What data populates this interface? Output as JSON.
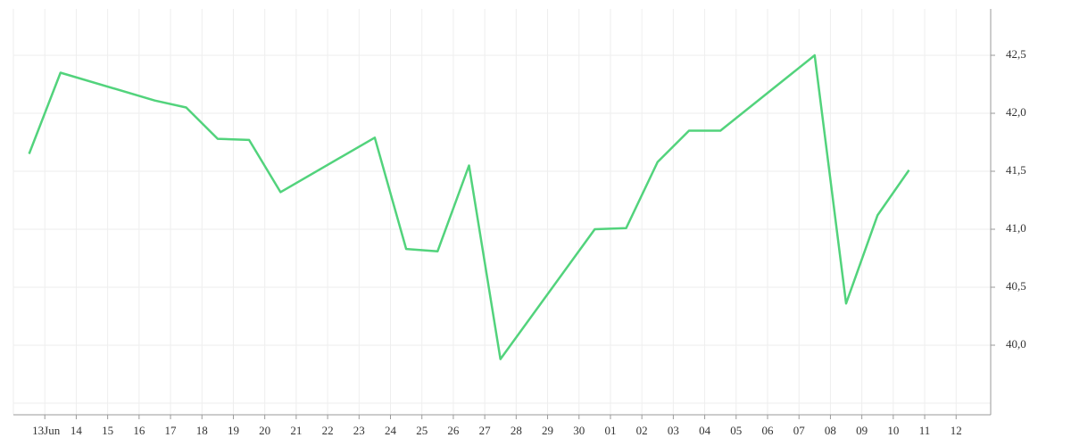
{
  "chart_data": {
    "type": "line",
    "x": [
      -0.5,
      0.5,
      3.5,
      4.5,
      5.5,
      6.5,
      7.5,
      10.5,
      11.5,
      12.5,
      13.5,
      14.5,
      17.5,
      18.5,
      19.5,
      20.5,
      21.5,
      24.5,
      25.5,
      26.5,
      27.5
    ],
    "values": [
      41.65,
      42.35,
      42.11,
      42.05,
      41.78,
      41.77,
      41.32,
      41.79,
      40.83,
      40.81,
      41.55,
      39.88,
      41.0,
      41.01,
      41.58,
      41.85,
      41.85,
      42.5,
      40.36,
      41.12,
      41.51
    ],
    "color": "#52d37c",
    "xlim": [
      -1,
      30.1
    ],
    "ylim": [
      39.4,
      42.9
    ],
    "xticks": [
      {
        "value": 0,
        "label": "13Jun"
      },
      {
        "value": 1,
        "label": "14"
      },
      {
        "value": 2,
        "label": "15"
      },
      {
        "value": 3,
        "label": "16"
      },
      {
        "value": 4,
        "label": "17"
      },
      {
        "value": 5,
        "label": "18"
      },
      {
        "value": 6,
        "label": "19"
      },
      {
        "value": 7,
        "label": "20"
      },
      {
        "value": 8,
        "label": "21"
      },
      {
        "value": 9,
        "label": "22"
      },
      {
        "value": 10,
        "label": "23"
      },
      {
        "value": 11,
        "label": "24"
      },
      {
        "value": 12,
        "label": "25"
      },
      {
        "value": 13,
        "label": "26"
      },
      {
        "value": 14,
        "label": "27"
      },
      {
        "value": 15,
        "label": "28"
      },
      {
        "value": 16,
        "label": "29"
      },
      {
        "value": 17,
        "label": "30"
      },
      {
        "value": 18,
        "label": "01"
      },
      {
        "value": 19,
        "label": "02"
      },
      {
        "value": 20,
        "label": "03"
      },
      {
        "value": 21,
        "label": "04"
      },
      {
        "value": 22,
        "label": "05"
      },
      {
        "value": 23,
        "label": "06"
      },
      {
        "value": 24,
        "label": "07"
      },
      {
        "value": 25,
        "label": "08"
      },
      {
        "value": 26,
        "label": "09"
      },
      {
        "value": 27,
        "label": "10"
      },
      {
        "value": 28,
        "label": "11"
      },
      {
        "value": 29,
        "label": "12"
      }
    ],
    "yticks": [
      {
        "value": 40.0,
        "label": "40,0"
      },
      {
        "value": 40.5,
        "label": "40,5"
      },
      {
        "value": 41.0,
        "label": "41,0"
      },
      {
        "value": 41.5,
        "label": "41,5"
      },
      {
        "value": 42.0,
        "label": "42,0"
      },
      {
        "value": 42.5,
        "label": "42,5"
      }
    ],
    "grid": true
  }
}
